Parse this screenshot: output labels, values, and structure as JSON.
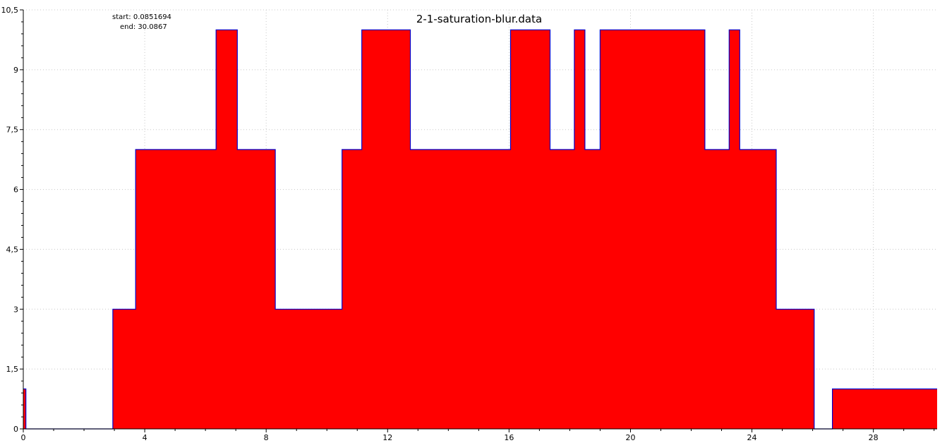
{
  "chart_data": {
    "type": "area",
    "title": "2-1-saturation-blur.data",
    "info": {
      "start_label": "start: 0.0851694",
      "end_label": "end: 30.0867"
    },
    "xlim": [
      0,
      30.1
    ],
    "ylim": [
      0,
      10.5
    ],
    "xticks": [
      0,
      4,
      8,
      12,
      16,
      20,
      24,
      28
    ],
    "xtick_labels": [
      "0",
      "4",
      "8",
      "12",
      "16",
      "20",
      "24",
      "28"
    ],
    "yticks": [
      0,
      1.5,
      3,
      4.5,
      6,
      7.5,
      9,
      10.5
    ],
    "ytick_labels": [
      "0",
      "1,5",
      "3",
      "4,5",
      "6",
      "7,5",
      "9",
      "10,5"
    ],
    "grid": true,
    "step": "post",
    "series": [
      {
        "fill_color": "#ff0000",
        "line_color": "#0000cc",
        "x": [
          0.0,
          0.085,
          2.95,
          3.7,
          6.35,
          7.05,
          8.3,
          10.5,
          11.15,
          12.75,
          16.05,
          17.35,
          18.15,
          18.5,
          19.0,
          22.45,
          23.25,
          23.6,
          24.8,
          26.05,
          26.65,
          30.09
        ],
        "y": [
          1.0,
          0.0,
          3.0,
          7.0,
          10.0,
          7.0,
          3.0,
          7.0,
          10.0,
          7.0,
          10.0,
          7.0,
          10.0,
          7.0,
          10.0,
          7.0,
          10.0,
          7.0,
          3.0,
          0.0,
          1.0,
          1.0
        ]
      }
    ]
  },
  "colors": {
    "fill": "#ff0000",
    "line": "#0000cc",
    "grid": "#c8c8c8",
    "axis": "#000000"
  }
}
